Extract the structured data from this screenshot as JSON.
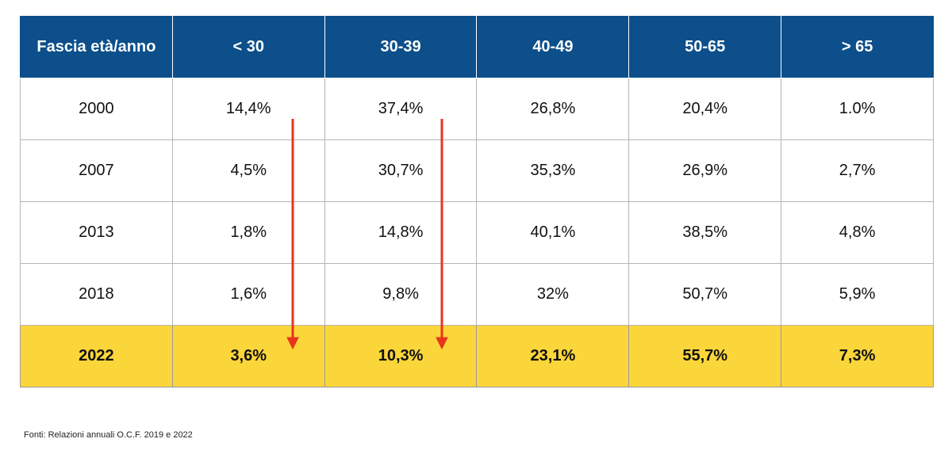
{
  "table": {
    "header": [
      "Fascia età/anno",
      "< 30",
      "30-39",
      "40-49",
      "50-65",
      "> 65"
    ],
    "rows": [
      [
        "2000",
        "14,4%",
        "37,4%",
        "26,8%",
        "20,4%",
        "1.0%"
      ],
      [
        "2007",
        "4,5%",
        "30,7%",
        "35,3%",
        "26,9%",
        "2,7%"
      ],
      [
        "2013",
        "1,8%",
        "14,8%",
        "40,1%",
        "38,5%",
        "4,8%"
      ],
      [
        "2018",
        "1,6%",
        "9,8%",
        "32%",
        "50,7%",
        "5,9%"
      ],
      [
        "2022",
        "3,6%",
        "10,3%",
        "23,1%",
        "55,7%",
        "7,3%"
      ]
    ]
  },
  "footnote": "Fonti: Relazioni annuali O.C.F. 2019 e 2022"
}
